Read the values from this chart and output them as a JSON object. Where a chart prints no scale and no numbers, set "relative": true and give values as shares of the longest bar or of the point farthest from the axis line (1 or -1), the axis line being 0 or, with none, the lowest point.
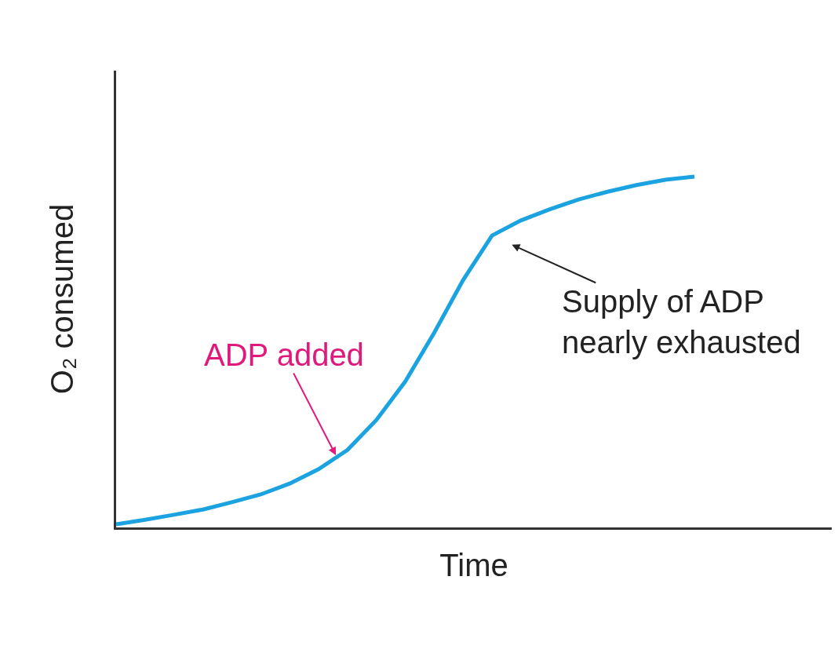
{
  "chart_data": {
    "type": "line",
    "relative": true,
    "xlabel": "Time",
    "ylabel": "O₂ consumed",
    "categories": [
      null,
      null,
      null,
      null,
      null,
      null,
      null,
      null,
      null,
      null,
      null,
      null,
      null,
      null,
      null,
      null,
      null,
      null,
      null,
      null,
      null
    ],
    "series": [
      {
        "color": "#1aa3e0",
        "values": [
          0.009,
          0.022,
          0.036,
          0.051,
          0.072,
          0.094,
          0.125,
          0.166,
          0.221,
          0.306,
          0.416,
          0.555,
          0.705,
          0.832,
          0.875,
          0.907,
          0.935,
          0.957,
          0.976,
          0.991,
          1.0
        ]
      }
    ],
    "annotations": [
      "ADP added",
      "Supply of ADP\nnearly exhausted"
    ],
    "marker": "none",
    "line_style": "solid"
  }
}
